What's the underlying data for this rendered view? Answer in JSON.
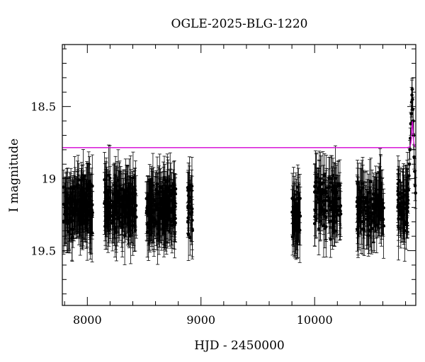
{
  "chart_data": {
    "type": "scatter",
    "title": "OGLE-2025-BLG-1220",
    "xlabel": "HJD - 2450000",
    "ylabel": "I magnitude",
    "xlim": [
      7780,
      10890
    ],
    "ylim": [
      19.88,
      18.07
    ],
    "y_inverted": true,
    "x_ticks": [
      8000,
      9000,
      10000
    ],
    "x_tick_labels": [
      "8000",
      "9000",
      "10000"
    ],
    "y_ticks": [
      18.5,
      19,
      19.5
    ],
    "y_tick_labels": [
      "18.5",
      "19",
      "19.5"
    ],
    "grid": false,
    "legend": "none",
    "marker_color": "#000000",
    "model_color": "#d400d4",
    "observing_seasons": [
      {
        "start": 7790,
        "end": 8050,
        "center_mag": 19.2,
        "n_points": 180
      },
      {
        "start": 8150,
        "end": 8430,
        "center_mag": 19.19,
        "n_points": 190
      },
      {
        "start": 8520,
        "end": 8780,
        "center_mag": 19.2,
        "n_points": 190
      },
      {
        "start": 8880,
        "end": 8925,
        "center_mag": 19.2,
        "n_points": 25
      },
      {
        "start": 9800,
        "end": 9875,
        "center_mag": 19.25,
        "n_points": 45
      },
      {
        "start": 10000,
        "end": 10230,
        "center_mag": 19.17,
        "n_points": 120
      },
      {
        "start": 10370,
        "end": 10610,
        "center_mag": 19.2,
        "n_points": 120
      },
      {
        "start": 10730,
        "end": 10820,
        "center_mag": 19.2,
        "n_points": 70
      }
    ],
    "event_points": [
      {
        "x": 10822,
        "y": 19.15
      },
      {
        "x": 10826,
        "y": 19.08
      },
      {
        "x": 10830,
        "y": 18.98
      },
      {
        "x": 10834,
        "y": 18.9
      },
      {
        "x": 10838,
        "y": 18.8
      },
      {
        "x": 10842,
        "y": 18.72
      },
      {
        "x": 10846,
        "y": 18.62
      },
      {
        "x": 10850,
        "y": 18.55
      },
      {
        "x": 10853,
        "y": 18.47
      },
      {
        "x": 10856,
        "y": 18.42
      },
      {
        "x": 10858,
        "y": 18.38
      },
      {
        "x": 10861,
        "y": 18.45
      },
      {
        "x": 10864,
        "y": 18.52
      },
      {
        "x": 10867,
        "y": 18.6
      },
      {
        "x": 10871,
        "y": 18.7
      },
      {
        "x": 10875,
        "y": 18.85
      },
      {
        "x": 10880,
        "y": 18.95
      },
      {
        "x": 10884,
        "y": 19.05
      },
      {
        "x": 10888,
        "y": 19.1
      }
    ],
    "model": {
      "baseline_mag": 19.17,
      "t0": 10860,
      "peak_mag": 18.6,
      "tE": 9
    }
  }
}
